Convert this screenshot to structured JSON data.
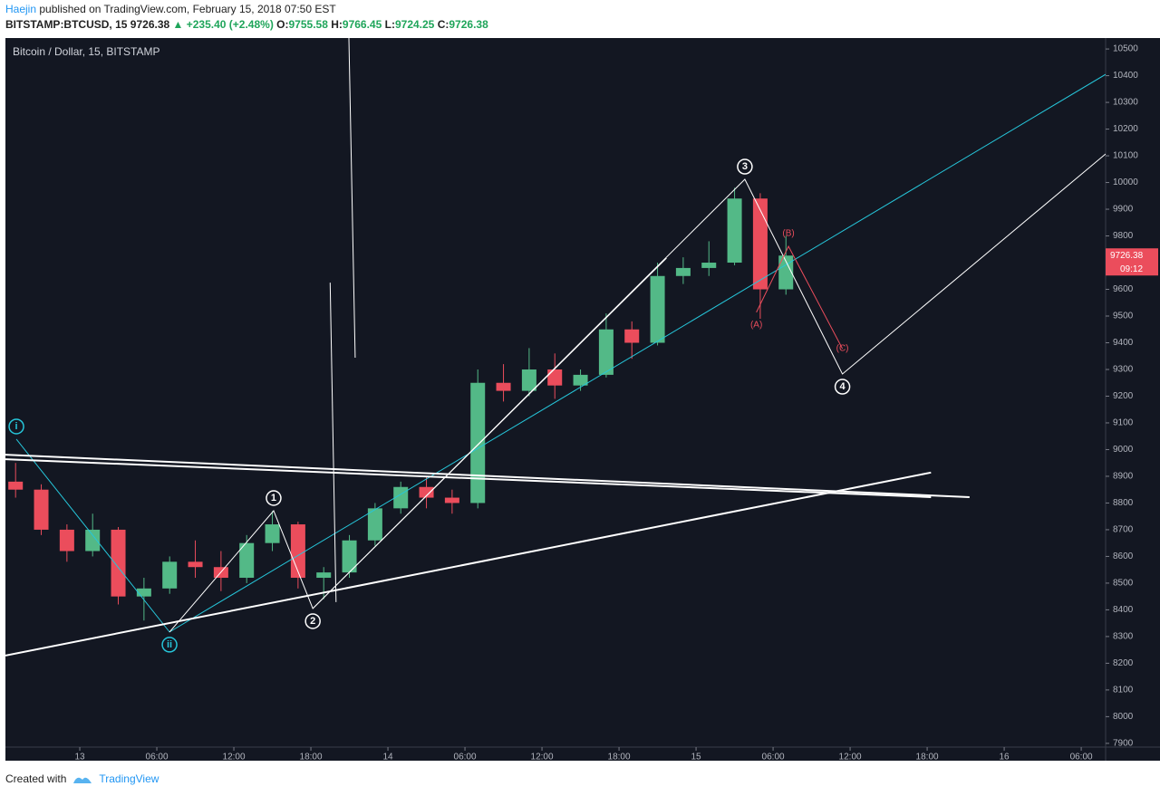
{
  "header": {
    "author": "Haejin",
    "published": "published on TradingView.com, February 15, 2018 07:50 EST",
    "symbol": "BITSTAMP:BTCUSD, 15",
    "last": "9726.38",
    "change": "▲ +235.40 (+2.48%)",
    "o_label": "O:",
    "o": "9755.58",
    "h_label": "H:",
    "h": "9766.45",
    "l_label": "L:",
    "l": "9724.25",
    "c_label": "C:",
    "c": "9726.38"
  },
  "chart_data": {
    "type": "candlestick",
    "title": "Bitcoin / Dollar, 15, BITSTAMP",
    "x": [
      -5,
      -3,
      -1,
      1,
      3,
      5,
      7,
      9,
      11,
      13,
      15,
      17,
      19,
      21,
      23,
      25,
      27,
      29,
      31,
      33,
      35,
      37,
      39,
      41,
      43,
      45,
      47,
      49,
      51,
      53,
      55
    ],
    "open": [
      8880,
      8850,
      8700,
      8620,
      8700,
      8450,
      8480,
      8580,
      8560,
      8520,
      8650,
      8720,
      8520,
      8540,
      8660,
      8780,
      8860,
      8820,
      8800,
      9250,
      9220,
      9300,
      9240,
      9280,
      9450,
      9400,
      9650,
      9680,
      9700,
      9940,
      9600
    ],
    "high": [
      8950,
      8870,
      8720,
      8760,
      8710,
      8520,
      8600,
      8660,
      8620,
      8680,
      8770,
      8730,
      8560,
      8680,
      8800,
      8880,
      8900,
      8850,
      9300,
      9320,
      9380,
      9360,
      9300,
      9510,
      9480,
      9700,
      9720,
      9780,
      9980,
      9960,
      9800
    ],
    "low": [
      8820,
      8680,
      8580,
      8600,
      8420,
      8360,
      8460,
      8520,
      8470,
      8500,
      8620,
      8480,
      8440,
      8520,
      8640,
      8760,
      8780,
      8760,
      8780,
      9180,
      9200,
      9190,
      9220,
      9270,
      9340,
      9390,
      9620,
      9650,
      9690,
      9490,
      9580
    ],
    "close": [
      8850,
      8700,
      8620,
      8700,
      8450,
      8480,
      8580,
      8560,
      8520,
      8650,
      8720,
      8520,
      8540,
      8660,
      8780,
      8860,
      8820,
      8800,
      9250,
      9220,
      9300,
      9240,
      9280,
      9450,
      9400,
      9650,
      9680,
      9700,
      9940,
      9600,
      9726.38
    ],
    "up_color": "#53b987",
    "down_color": "#eb4d5c",
    "xlim": [
      -5.79,
      79.9
    ],
    "ylim": [
      7886,
      10541
    ],
    "xticks": [
      {
        "value": 0,
        "label": "13"
      },
      {
        "value": 6,
        "label": "06:00"
      },
      {
        "value": 12,
        "label": "12:00"
      },
      {
        "value": 18,
        "label": "18:00"
      },
      {
        "value": 24,
        "label": "14"
      },
      {
        "value": 30,
        "label": "06:00"
      },
      {
        "value": 36,
        "label": "12:00"
      },
      {
        "value": 42,
        "label": "18:00"
      },
      {
        "value": 48,
        "label": "15"
      },
      {
        "value": 54,
        "label": "06:00"
      },
      {
        "value": 60,
        "label": "12:00"
      },
      {
        "value": 66,
        "label": "18:00"
      },
      {
        "value": 72,
        "label": "16"
      },
      {
        "value": 78,
        "label": "06:00"
      }
    ],
    "yticks": [
      7900,
      8000,
      8100,
      8200,
      8300,
      8400,
      8500,
      8600,
      8700,
      8800,
      8900,
      9000,
      9100,
      9200,
      9300,
      9400,
      9500,
      9600,
      9700,
      9800,
      9900,
      10000,
      10100,
      10200,
      10300,
      10400,
      10500
    ],
    "grid": false,
    "last_price": 9726.38,
    "countdown": "09:12",
    "last_color": "#eb4d5c",
    "drawings": [
      {
        "color": "#26c6da",
        "x": [
          -4.94,
          6.99,
          79.9
        ],
        "y": [
          9039,
          8317,
          10405
        ]
      },
      {
        "color": "#ffffff",
        "x": [
          -5.79,
          66.3
        ],
        "y": [
          8229,
          8914
        ]
      },
      {
        "color": "#ffffff",
        "x": [
          -5.79,
          69.3
        ],
        "y": [
          8981,
          8822
        ]
      },
      {
        "color": "#ffffff",
        "x": [
          -5.79,
          66.3
        ],
        "y": [
          8964,
          8822
        ]
      },
      {
        "color": "#ffffff",
        "x": [
          6.99,
          15.1,
          18.15,
          51.8,
          59.4,
          79.9
        ],
        "y": [
          8317,
          8771,
          8405,
          10012,
          9283,
          10107
        ]
      },
      {
        "color": "#ffffff",
        "x": [
          18.15,
          45.7
        ],
        "y": [
          8405,
          9717
        ]
      },
      {
        "color": "#ffffff",
        "x": [
          19.5,
          19.96
        ],
        "y": [
          9625,
          8429
        ]
      },
      {
        "color": "#ffffff",
        "x": [
          20.96,
          21.45
        ],
        "y": [
          10541,
          9344
        ]
      },
      {
        "color": "#eb4d5c",
        "x": [
          52.7,
          55.2,
          59.4
        ],
        "y": [
          9514,
          9761,
          9378
        ]
      }
    ],
    "annotations": [
      {
        "text": "i",
        "x": -4.94,
        "y": 9039,
        "place": "above",
        "circle": true,
        "color": "#26c6da"
      },
      {
        "text": "ii",
        "x": 6.99,
        "y": 8317,
        "place": "below",
        "circle": true,
        "color": "#26c6da"
      },
      {
        "text": "1",
        "x": 15.1,
        "y": 8771,
        "place": "above",
        "circle": true,
        "color": "#ffffff"
      },
      {
        "text": "2",
        "x": 18.15,
        "y": 8405,
        "place": "below",
        "circle": true,
        "color": "#ffffff"
      },
      {
        "text": "3",
        "x": 51.8,
        "y": 10012,
        "place": "above",
        "circle": true,
        "color": "#ffffff"
      },
      {
        "text": "4",
        "x": 59.4,
        "y": 9283,
        "place": "below",
        "circle": true,
        "color": "#ffffff"
      },
      {
        "text": "(A)",
        "x": 52.7,
        "y": 9514,
        "place": "below",
        "circle": false,
        "color": "#eb4d5c"
      },
      {
        "text": "(B)",
        "x": 55.2,
        "y": 9761,
        "place": "above",
        "circle": false,
        "color": "#eb4d5c"
      },
      {
        "text": "(C)",
        "x": 59.4,
        "y": 9378,
        "place": "on",
        "circle": false,
        "color": "#eb4d5c"
      }
    ]
  },
  "footer": {
    "created": "Created with",
    "brand": "TradingView"
  }
}
